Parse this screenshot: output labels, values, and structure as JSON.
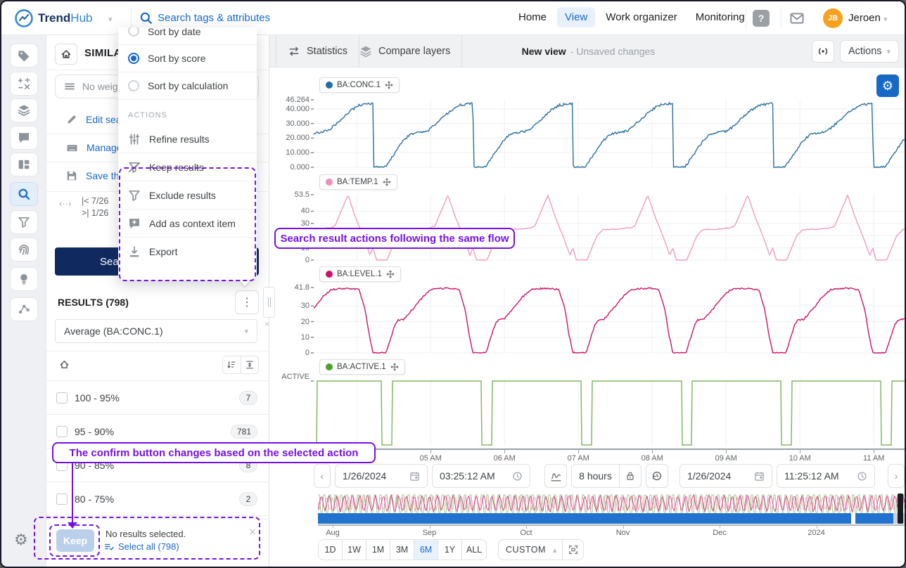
{
  "navbar": {
    "brand_bold": "Trend",
    "brand_light": "Hub",
    "search_placeholder": "Search tags & attributes",
    "items": [
      {
        "label": "Home",
        "active": false
      },
      {
        "label": "View",
        "active": true
      },
      {
        "label": "Work organizer",
        "active": false
      },
      {
        "label": "Monitoring",
        "active": false
      }
    ],
    "user": {
      "initials": "JB",
      "name": "Jeroen"
    }
  },
  "sidebar": {
    "icons": [
      "tag",
      "functions",
      "layers",
      "comment",
      "dashboard",
      "search",
      "filter",
      "fingerprint",
      "lightbulb",
      "graph"
    ],
    "active": "search",
    "bottom_icon": "settings"
  },
  "panel": {
    "title": "SIMILA",
    "weight_placeholder": "No weig",
    "links": [
      {
        "icon": "pencil",
        "label": "Edit sea"
      },
      {
        "icon": "keyboard",
        "label": "Manage"
      },
      {
        "icon": "save",
        "label": "Save th"
      }
    ],
    "range_start": "|<  7/26",
    "range_end": ">|  1/26",
    "search_button": "Search",
    "results_title": "RESULTS (798)",
    "aggregation": "Average (BA:CONC.1)",
    "rows": [
      {
        "label": "100 - 95%",
        "count": "7"
      },
      {
        "label": "95 - 90%",
        "count": "781"
      },
      {
        "label": "90 - 85%",
        "count": "8"
      },
      {
        "label": "80 - 75%",
        "count": "2"
      }
    ],
    "footer": {
      "confirm_label": "Keep",
      "status": "No results selected.",
      "select_all": "Select all (798)"
    }
  },
  "menu": {
    "sort_options": [
      {
        "label": "Sort by date",
        "selected": false,
        "clipped": true
      },
      {
        "label": "Sort by score",
        "selected": true,
        "clipped": false
      },
      {
        "label": "Sort by calculation",
        "selected": false,
        "clipped": false
      }
    ],
    "section_label": "ACTIONS",
    "actions": [
      {
        "icon": "sliders",
        "label": "Refine results",
        "highlighted": false
      },
      {
        "icon": "filter-keep",
        "label": "Keep results",
        "highlighted": true
      },
      {
        "icon": "filter",
        "label": "Exclude results",
        "highlighted": true
      },
      {
        "icon": "comment-plus",
        "label": "Add as context item",
        "highlighted": true
      },
      {
        "icon": "download",
        "label": "Export",
        "highlighted": true
      }
    ]
  },
  "annotations": {
    "callout1": "Search result actions following the same flow",
    "callout2": "The confirm button changes based on the selected action",
    "purple": "#7612e0"
  },
  "view_header": {
    "statistics": "Statistics",
    "compare_layers": "Compare layers",
    "title": "New view",
    "subtitle": "- Unsaved changes",
    "actions_label": "Actions"
  },
  "timebar": {
    "start_date": "1/26/2024",
    "start_time": "03:25:12 AM",
    "duration": "8 hours",
    "end_date": "1/26/2024",
    "end_time": "11:25:12 AM"
  },
  "overview": {
    "months": [
      "Aug",
      "Sep",
      "Oct",
      "Nov",
      "Dec",
      "2024"
    ]
  },
  "ranges": {
    "options": [
      "1D",
      "1W",
      "1M",
      "3M",
      "6M",
      "1Y",
      "ALL"
    ],
    "selected": "6M",
    "custom_label": "CUSTOM"
  },
  "colors": {
    "accent": "#1769c6",
    "navy": "#102a60",
    "avatar_orange": "#f6a21d",
    "selection_blue": "#2273cf",
    "purple": "#7612e0"
  },
  "chart_data": [
    {
      "type": "line",
      "name": "BA:CONC.1",
      "color": "#2a6f9e",
      "dot": "#1f6fa7",
      "ylim": [
        0,
        46.264
      ],
      "yticks": [
        {
          "v": 46.264,
          "label": "46.264"
        },
        {
          "v": 40,
          "label": "40.000"
        },
        {
          "v": 30,
          "label": "30.000"
        },
        {
          "v": 20,
          "label": "20.000"
        },
        {
          "v": 10,
          "label": "10.000"
        },
        {
          "v": 0,
          "label": "0.000"
        }
      ],
      "profile": [
        [
          0,
          43.8
        ],
        [
          0.004,
          0
        ],
        [
          0.12,
          0
        ],
        [
          0.2,
          8
        ],
        [
          0.3,
          18
        ],
        [
          0.38,
          23
        ],
        [
          0.55,
          25
        ],
        [
          0.65,
          31
        ],
        [
          0.78,
          39
        ],
        [
          0.86,
          42.5
        ],
        [
          0.95,
          43.5
        ],
        [
          1,
          43.8
        ]
      ],
      "noise": 0.8
    },
    {
      "type": "line",
      "name": "BA:TEMP.1",
      "color": "#f09ac2",
      "dot": "#ee8ebc",
      "ylim": [
        0,
        53.5
      ],
      "yticks": [
        {
          "v": 53.5,
          "label": "53.5"
        },
        {
          "v": 40,
          "label": "40"
        },
        {
          "v": 30,
          "label": "30"
        },
        {
          "v": 20,
          "label": "20"
        },
        {
          "v": 10,
          "label": "10"
        },
        {
          "v": 0,
          "label": "0"
        }
      ],
      "profile": [
        [
          0,
          10
        ],
        [
          0.035,
          0
        ],
        [
          0.14,
          0
        ],
        [
          0.18,
          8
        ],
        [
          0.24,
          20
        ],
        [
          0.3,
          25
        ],
        [
          0.45,
          25.3
        ],
        [
          0.58,
          26.5
        ],
        [
          0.62,
          28
        ],
        [
          0.75,
          53.2
        ],
        [
          0.82,
          36
        ],
        [
          0.9,
          20
        ],
        [
          0.97,
          4
        ],
        [
          1,
          10
        ]
      ],
      "noise": 0.35
    },
    {
      "type": "line",
      "name": "BA:LEVEL.1",
      "color": "#cb1467",
      "dot": "#cc1168",
      "ylim": [
        0,
        41.8
      ],
      "yticks": [
        {
          "v": 41.8,
          "label": "41.8"
        },
        {
          "v": 30,
          "label": "30"
        },
        {
          "v": 20,
          "label": "20"
        },
        {
          "v": 10,
          "label": "10"
        },
        {
          "v": 0,
          "label": "0"
        }
      ],
      "profile": [
        [
          0,
          0
        ],
        [
          0.13,
          0
        ],
        [
          0.17,
          8
        ],
        [
          0.22,
          18
        ],
        [
          0.25,
          21
        ],
        [
          0.31,
          21.5
        ],
        [
          0.4,
          28
        ],
        [
          0.5,
          36
        ],
        [
          0.58,
          40.5
        ],
        [
          0.65,
          41
        ],
        [
          0.75,
          41.3
        ],
        [
          0.86,
          40.5
        ],
        [
          0.92,
          28
        ],
        [
          0.96,
          12
        ],
        [
          1,
          0
        ]
      ],
      "noise": 0.5
    },
    {
      "type": "step",
      "name": "BA:ACTIVE.1",
      "color": "#82b863",
      "dot": "#4aa02c",
      "ylabel": "ACTIVE",
      "low_intervals": [
        [
          3.417,
          3.46
        ],
        [
          4.34,
          4.48
        ],
        [
          5.69,
          5.83
        ],
        [
          7.04,
          7.18
        ],
        [
          8.4,
          8.54
        ],
        [
          9.75,
          9.89
        ],
        [
          11.1,
          11.24
        ]
      ]
    }
  ],
  "time_axis": {
    "x_hours": [
      3.417,
      11.417
    ],
    "cycle_start_hour": 4.22,
    "period_hours": 1.353,
    "labels": [
      "05 AM",
      "06 AM",
      "07 AM",
      "08 AM",
      "09 AM",
      "10 AM",
      "11 AM"
    ],
    "first_label_hour": 5
  }
}
